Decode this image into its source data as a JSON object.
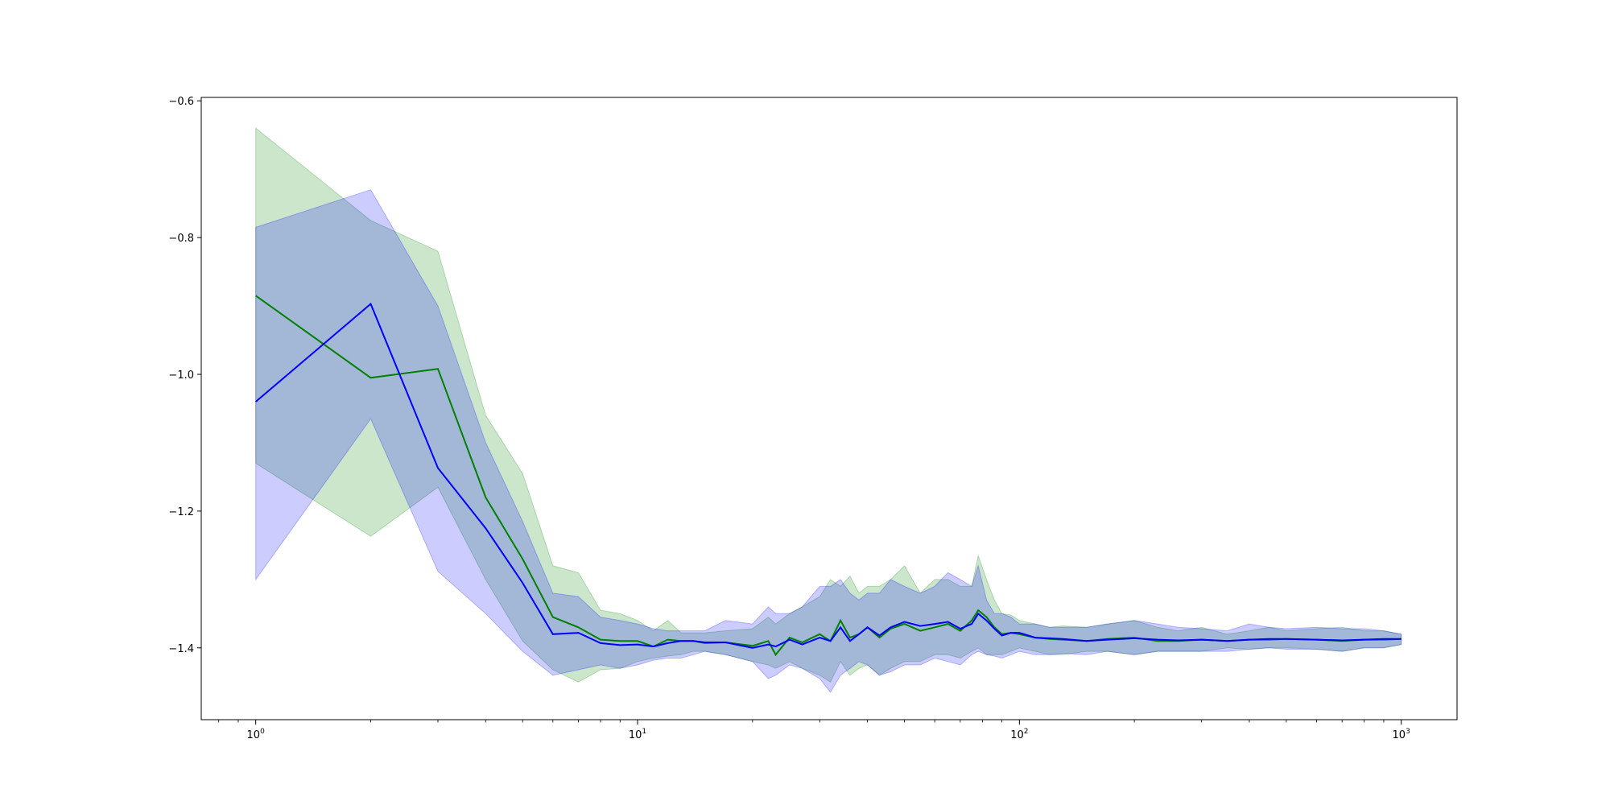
{
  "chart_data": {
    "type": "line",
    "xscale": "log",
    "xlim": [
      0.72,
      1400
    ],
    "ylim": [
      -1.505,
      -0.595
    ],
    "grid": false,
    "legend": "none",
    "yticks": [
      {
        "value": -1.4,
        "label": "−1.4"
      },
      {
        "value": -1.2,
        "label": "−1.2"
      },
      {
        "value": -1.0,
        "label": "−1.0"
      },
      {
        "value": -0.8,
        "label": "−0.8"
      },
      {
        "value": -0.6,
        "label": "−0.6"
      }
    ],
    "xticks": [
      {
        "value": 1,
        "base": "10",
        "exp": "0"
      },
      {
        "value": 10,
        "base": "10",
        "exp": "1"
      },
      {
        "value": 100,
        "base": "10",
        "exp": "2"
      },
      {
        "value": 1000,
        "base": "10",
        "exp": "3"
      }
    ],
    "series": [
      {
        "color": "#008000",
        "band_color": "#008000",
        "x": [
          1,
          2,
          3,
          4,
          5,
          6,
          7,
          8,
          9,
          10,
          11,
          12,
          13,
          14,
          15,
          17,
          20,
          22,
          23,
          25,
          27,
          30,
          32,
          34,
          36,
          38,
          40,
          43,
          46,
          50,
          55,
          60,
          65,
          70,
          75,
          78,
          82,
          86,
          90,
          95,
          100,
          110,
          120,
          130,
          150,
          170,
          200,
          230,
          260,
          300,
          350,
          400,
          450,
          500,
          600,
          700,
          800,
          900,
          1000
        ],
        "y": [
          -0.885,
          -1.005,
          -0.992,
          -1.18,
          -1.27,
          -1.355,
          -1.37,
          -1.388,
          -1.39,
          -1.39,
          -1.398,
          -1.388,
          -1.39,
          -1.39,
          -1.393,
          -1.392,
          -1.397,
          -1.39,
          -1.41,
          -1.385,
          -1.392,
          -1.38,
          -1.39,
          -1.36,
          -1.385,
          -1.38,
          -1.37,
          -1.385,
          -1.372,
          -1.365,
          -1.375,
          -1.37,
          -1.365,
          -1.375,
          -1.36,
          -1.345,
          -1.355,
          -1.37,
          -1.38,
          -1.378,
          -1.38,
          -1.385,
          -1.387,
          -1.388,
          -1.39,
          -1.387,
          -1.385,
          -1.39,
          -1.39,
          -1.388,
          -1.39,
          -1.388,
          -1.388,
          -1.387,
          -1.388,
          -1.39,
          -1.388,
          -1.388,
          -1.387
        ],
        "upper": [
          -0.64,
          -0.775,
          -0.82,
          -1.06,
          -1.145,
          -1.28,
          -1.29,
          -1.345,
          -1.35,
          -1.36,
          -1.375,
          -1.36,
          -1.378,
          -1.378,
          -1.378,
          -1.375,
          -1.372,
          -1.355,
          -1.365,
          -1.35,
          -1.34,
          -1.325,
          -1.3,
          -1.31,
          -1.295,
          -1.32,
          -1.31,
          -1.31,
          -1.3,
          -1.28,
          -1.32,
          -1.3,
          -1.3,
          -1.31,
          -1.31,
          -1.265,
          -1.3,
          -1.33,
          -1.35,
          -1.352,
          -1.36,
          -1.365,
          -1.37,
          -1.368,
          -1.37,
          -1.365,
          -1.36,
          -1.37,
          -1.375,
          -1.37,
          -1.38,
          -1.375,
          -1.37,
          -1.375,
          -1.372,
          -1.37,
          -1.375,
          -1.375,
          -1.38
        ],
        "lower": [
          -1.13,
          -1.237,
          -1.165,
          -1.3,
          -1.39,
          -1.432,
          -1.45,
          -1.432,
          -1.43,
          -1.42,
          -1.415,
          -1.412,
          -1.41,
          -1.405,
          -1.405,
          -1.41,
          -1.42,
          -1.425,
          -1.43,
          -1.42,
          -1.43,
          -1.44,
          -1.45,
          -1.42,
          -1.44,
          -1.43,
          -1.425,
          -1.44,
          -1.43,
          -1.42,
          -1.42,
          -1.41,
          -1.41,
          -1.415,
          -1.405,
          -1.4,
          -1.41,
          -1.41,
          -1.41,
          -1.405,
          -1.4,
          -1.405,
          -1.41,
          -1.41,
          -1.405,
          -1.405,
          -1.41,
          -1.405,
          -1.405,
          -1.405,
          -1.4,
          -1.402,
          -1.4,
          -1.4,
          -1.402,
          -1.405,
          -1.4,
          -1.4,
          -1.395
        ]
      },
      {
        "color": "#0000ff",
        "band_color": "#0000ff",
        "x": [
          1,
          2,
          3,
          4,
          5,
          6,
          7,
          8,
          9,
          10,
          11,
          12,
          13,
          14,
          15,
          17,
          20,
          22,
          23,
          25,
          27,
          30,
          32,
          34,
          36,
          38,
          40,
          43,
          46,
          50,
          55,
          60,
          65,
          70,
          75,
          78,
          82,
          86,
          90,
          95,
          100,
          110,
          120,
          130,
          150,
          170,
          200,
          230,
          260,
          300,
          350,
          400,
          450,
          500,
          600,
          700,
          800,
          900,
          1000
        ],
        "y": [
          -1.04,
          -0.897,
          -1.137,
          -1.225,
          -1.305,
          -1.38,
          -1.378,
          -1.393,
          -1.396,
          -1.395,
          -1.398,
          -1.393,
          -1.39,
          -1.39,
          -1.392,
          -1.392,
          -1.4,
          -1.395,
          -1.398,
          -1.388,
          -1.395,
          -1.385,
          -1.39,
          -1.37,
          -1.39,
          -1.38,
          -1.37,
          -1.382,
          -1.37,
          -1.362,
          -1.368,
          -1.365,
          -1.362,
          -1.372,
          -1.365,
          -1.35,
          -1.36,
          -1.372,
          -1.382,
          -1.378,
          -1.378,
          -1.385,
          -1.386,
          -1.387,
          -1.39,
          -1.388,
          -1.386,
          -1.388,
          -1.389,
          -1.388,
          -1.39,
          -1.388,
          -1.387,
          -1.387,
          -1.388,
          -1.389,
          -1.388,
          -1.387,
          -1.387
        ],
        "upper": [
          -0.785,
          -0.73,
          -0.9,
          -1.1,
          -1.215,
          -1.32,
          -1.325,
          -1.355,
          -1.36,
          -1.365,
          -1.372,
          -1.375,
          -1.375,
          -1.375,
          -1.375,
          -1.36,
          -1.365,
          -1.34,
          -1.35,
          -1.35,
          -1.34,
          -1.31,
          -1.31,
          -1.3,
          -1.32,
          -1.33,
          -1.32,
          -1.32,
          -1.3,
          -1.31,
          -1.32,
          -1.31,
          -1.29,
          -1.3,
          -1.31,
          -1.28,
          -1.33,
          -1.35,
          -1.35,
          -1.355,
          -1.365,
          -1.365,
          -1.37,
          -1.37,
          -1.37,
          -1.365,
          -1.36,
          -1.365,
          -1.37,
          -1.372,
          -1.375,
          -1.365,
          -1.37,
          -1.372,
          -1.37,
          -1.372,
          -1.372,
          -1.375,
          -1.38
        ],
        "lower": [
          -1.3,
          -1.065,
          -1.288,
          -1.35,
          -1.405,
          -1.44,
          -1.432,
          -1.425,
          -1.43,
          -1.425,
          -1.418,
          -1.415,
          -1.415,
          -1.41,
          -1.405,
          -1.41,
          -1.42,
          -1.445,
          -1.44,
          -1.425,
          -1.43,
          -1.445,
          -1.465,
          -1.44,
          -1.43,
          -1.42,
          -1.425,
          -1.44,
          -1.435,
          -1.425,
          -1.425,
          -1.415,
          -1.42,
          -1.425,
          -1.41,
          -1.405,
          -1.41,
          -1.412,
          -1.415,
          -1.41,
          -1.405,
          -1.41,
          -1.41,
          -1.408,
          -1.41,
          -1.405,
          -1.41,
          -1.405,
          -1.405,
          -1.405,
          -1.405,
          -1.402,
          -1.4,
          -1.402,
          -1.402,
          -1.405,
          -1.4,
          -1.4,
          -1.395
        ]
      }
    ]
  }
}
